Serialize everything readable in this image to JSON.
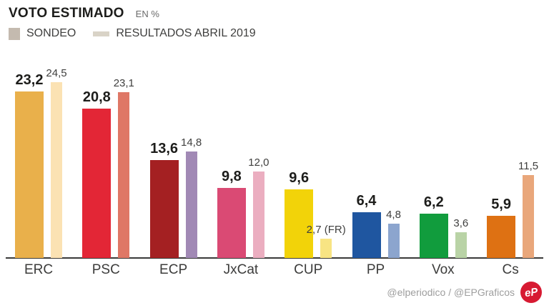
{
  "header": {
    "title": "VOTO ESTIMADO",
    "subtitle": "EN %",
    "legend": [
      {
        "label": "SONDEO",
        "swatch_color": "#c4baaf",
        "swatch_style": "square"
      },
      {
        "label": "RESULTADOS ABRIL 2019",
        "swatch_color": "#d9d3c7",
        "swatch_style": "bar"
      }
    ]
  },
  "chart_data": {
    "type": "bar",
    "title": "VOTO ESTIMADO",
    "unit": "EN %",
    "grid": false,
    "legend_position": "top-left",
    "ylim": [
      0,
      26
    ],
    "categories": [
      "ERC",
      "PSC",
      "ECP",
      "JxCat",
      "CUP",
      "PP",
      "Vox",
      "Cs"
    ],
    "series": [
      {
        "name": "SONDEO",
        "values": [
          23.2,
          20.8,
          13.6,
          9.8,
          9.6,
          6.4,
          6.2,
          5.9
        ],
        "labels": [
          "23,2",
          "20,8",
          "13,6",
          "9,8",
          "9,6",
          "6,4",
          "6,2",
          "5,9"
        ],
        "colors": [
          "#e9b04b",
          "#e32636",
          "#a42022",
          "#da4a74",
          "#f2d309",
          "#1f56a0",
          "#119c3d",
          "#de7113"
        ]
      },
      {
        "name": "RESULTADOS ABRIL 2019",
        "values": [
          24.5,
          23.1,
          14.8,
          12.0,
          2.7,
          4.8,
          3.6,
          11.5
        ],
        "labels": [
          "24,5",
          "23,1",
          "14,8",
          "12,0",
          "2,7 (FR)",
          "4,8",
          "3,6",
          "11,5"
        ],
        "colors": [
          "#fbe2b3",
          "#df7766",
          "#a189b5",
          "#ebaec0",
          "#f8e483",
          "#8ca5ce",
          "#b9d3a6",
          "#e9a77b"
        ]
      }
    ]
  },
  "footer": {
    "credits": "@elperiodico / @EPGraficos",
    "logo_text": "eP",
    "logo_color": "#d71a32"
  }
}
